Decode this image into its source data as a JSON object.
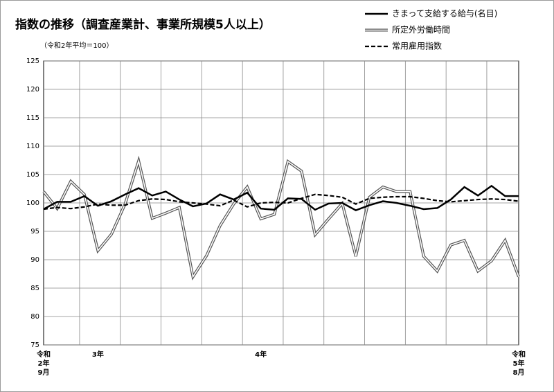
{
  "chart_data": {
    "type": "line",
    "title": "指数の推移（調査産業計、事業所規模5人以上）",
    "subtitle": "（令和2年平均＝100）",
    "categories": [
      "令和\n2年\n9月",
      null,
      null,
      null,
      "3年",
      null,
      null,
      null,
      null,
      null,
      null,
      null,
      null,
      null,
      null,
      null,
      "4年",
      null,
      null,
      null,
      null,
      null,
      null,
      null,
      null,
      null,
      null,
      null,
      null,
      null,
      null,
      null,
      null,
      null,
      null,
      "令和\n5年\n8月"
    ],
    "series": [
      {
        "name": "きまって支給する給与(名目)",
        "color": "#000000",
        "style": "solid",
        "values": [
          98.9,
          100.2,
          100.2,
          101.2,
          99.5,
          100.3,
          101.5,
          102.6,
          101.3,
          102.0,
          100.6,
          99.4,
          99.9,
          101.5,
          100.6,
          101.8,
          99.0,
          98.8,
          100.8,
          100.7,
          98.8,
          99.9,
          100.0,
          98.7,
          99.6,
          100.3,
          100.0,
          99.5,
          98.9,
          99.1,
          100.6,
          102.8,
          101.3,
          103.0,
          101.2,
          101.2
        ]
      },
      {
        "name": "所定外労働時間",
        "color": "#555555",
        "style": "double",
        "values": [
          102.0,
          99.0,
          103.8,
          101.5,
          91.6,
          94.5,
          99.8,
          107.4,
          97.3,
          98.2,
          99.2,
          87.0,
          90.7,
          96.0,
          99.8,
          102.8,
          97.2,
          98.0,
          107.3,
          105.6,
          94.4,
          97.2,
          99.9,
          90.6,
          101.0,
          102.8,
          102.0,
          102.0,
          90.6,
          88.0,
          92.6,
          93.4,
          88.0,
          89.8,
          93.4,
          87.0
        ]
      },
      {
        "name": "常用雇用指数",
        "color": "#000000",
        "style": "dashed",
        "values": [
          98.9,
          99.2,
          99.0,
          99.3,
          99.8,
          99.6,
          99.6,
          100.4,
          100.7,
          100.6,
          100.2,
          100.0,
          99.8,
          99.5,
          100.5,
          99.3,
          100.0,
          100.1,
          100.0,
          100.8,
          101.5,
          101.3,
          101.0,
          99.8,
          100.8,
          101.0,
          101.1,
          101.1,
          100.8,
          100.4,
          100.2,
          100.4,
          100.6,
          100.7,
          100.6,
          100.3
        ]
      }
    ],
    "ylim": [
      75,
      125
    ],
    "yticks": [
      75,
      80,
      85,
      90,
      95,
      100,
      105,
      110,
      115,
      120,
      125
    ],
    "grid": true
  }
}
